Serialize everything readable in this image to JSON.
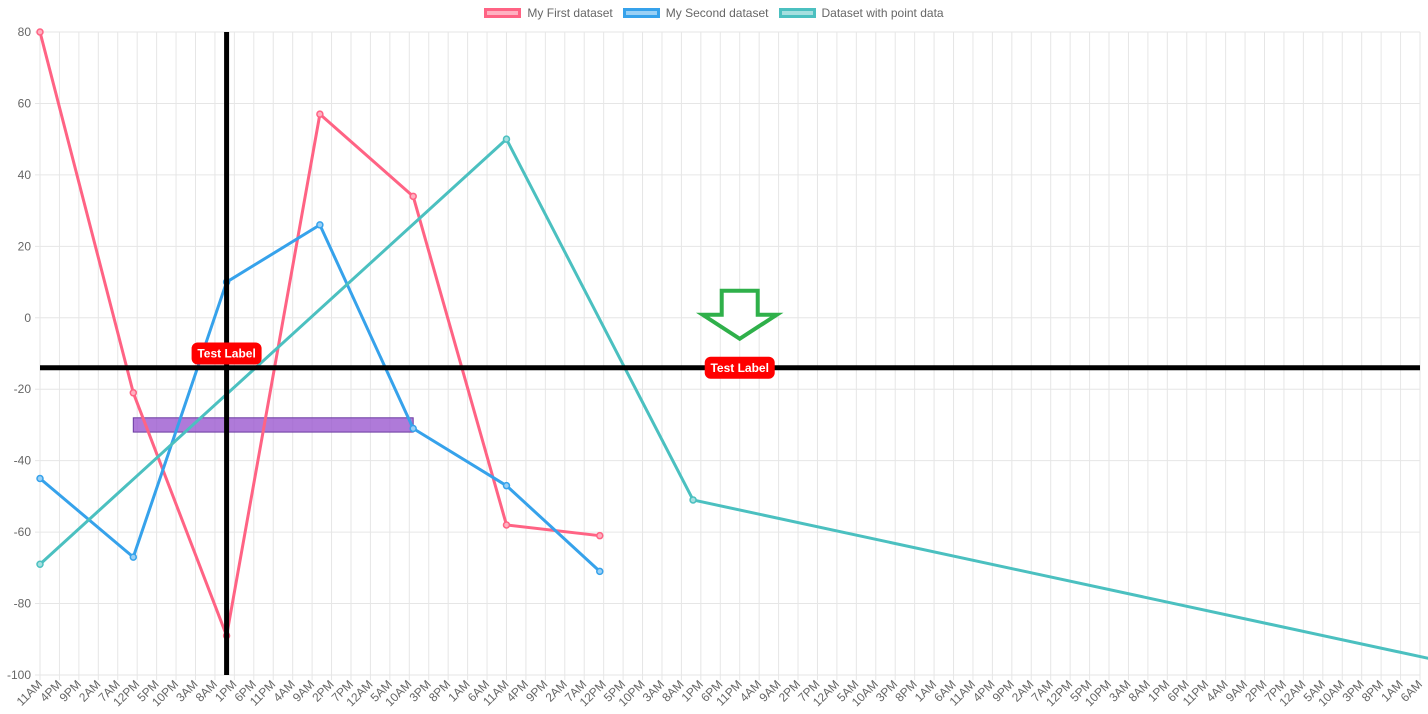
{
  "chart_data": {
    "type": "line",
    "x_axis": {
      "type": "time",
      "tick_labels": [
        "11AM",
        "4PM",
        "9PM",
        "2AM",
        "7AM",
        "12PM",
        "5PM",
        "10PM",
        "3AM",
        "8AM",
        "1PM",
        "6PM",
        "11PM",
        "4AM",
        "9AM",
        "2PM",
        "7PM",
        "12AM",
        "5AM",
        "10AM",
        "3PM",
        "8PM",
        "1AM",
        "6AM",
        "11AM",
        "4PM",
        "9PM",
        "2AM",
        "7AM",
        "12PM",
        "5PM",
        "10PM",
        "3AM",
        "8AM",
        "1PM",
        "6PM",
        "11PM",
        "4AM",
        "9AM",
        "2PM",
        "7PM",
        "12AM",
        "5AM",
        "10AM",
        "3PM",
        "8PM",
        "1AM",
        "6AM",
        "11AM",
        "4PM",
        "9PM",
        "2AM",
        "7AM",
        "12PM",
        "5PM",
        "10PM",
        "3AM",
        "8AM",
        "1PM",
        "6PM",
        "11PM",
        "4AM",
        "9AM",
        "2PM",
        "7PM",
        "12AM",
        "5AM",
        "10AM",
        "3PM",
        "8PM",
        "1AM",
        "6AM"
      ]
    },
    "y_axis": {
      "min": -100,
      "max": 80,
      "step": 20
    },
    "grid": true,
    "legend_position": "top",
    "series": [
      {
        "name": "My First dataset",
        "color": "#ff6384",
        "fill_color": "#ffb1c1",
        "points": [
          {
            "x": 0,
            "y": 80
          },
          {
            "x": 1,
            "y": -21
          },
          {
            "x": 2,
            "y": -89
          },
          {
            "x": 3,
            "y": 57
          },
          {
            "x": 4,
            "y": 34
          },
          {
            "x": 5,
            "y": -58
          },
          {
            "x": 6,
            "y": -61
          }
        ]
      },
      {
        "name": "My Second dataset",
        "color": "#36a2eb",
        "fill_color": "#9ad0f5",
        "points": [
          {
            "x": 0,
            "y": -45
          },
          {
            "x": 1,
            "y": -67
          },
          {
            "x": 2,
            "y": 10
          },
          {
            "x": 3,
            "y": 26
          },
          {
            "x": 4,
            "y": -31
          },
          {
            "x": 5,
            "y": -47
          },
          {
            "x": 6,
            "y": -71
          }
        ]
      },
      {
        "name": "Dataset with point data",
        "color": "#4bc0c0",
        "fill_color": "#a5dfdf",
        "points": [
          {
            "x": 0,
            "y": -69
          },
          {
            "x": 5,
            "y": 50
          },
          {
            "x": 7,
            "y": -51
          },
          {
            "x": 15,
            "y": -96
          }
        ]
      }
    ],
    "annotations": {
      "vertical_line": {
        "x": 2,
        "color": "#000000"
      },
      "horizontal_line": {
        "y": -14,
        "color": "#000000"
      },
      "box": {
        "x_min": 1,
        "x_max": 4,
        "y_min": -32,
        "y_max": -28,
        "color": "#9b59d0"
      },
      "labels": [
        {
          "text": "Test Label",
          "x": 2,
          "y": -10,
          "color": "#ff0000"
        },
        {
          "text": "Test Label",
          "x": 7.5,
          "y": -14,
          "color": "#ff0000"
        }
      ],
      "arrow": {
        "x": 7.5,
        "y": 0,
        "color": "#2fb04a",
        "direction": "down"
      }
    }
  }
}
